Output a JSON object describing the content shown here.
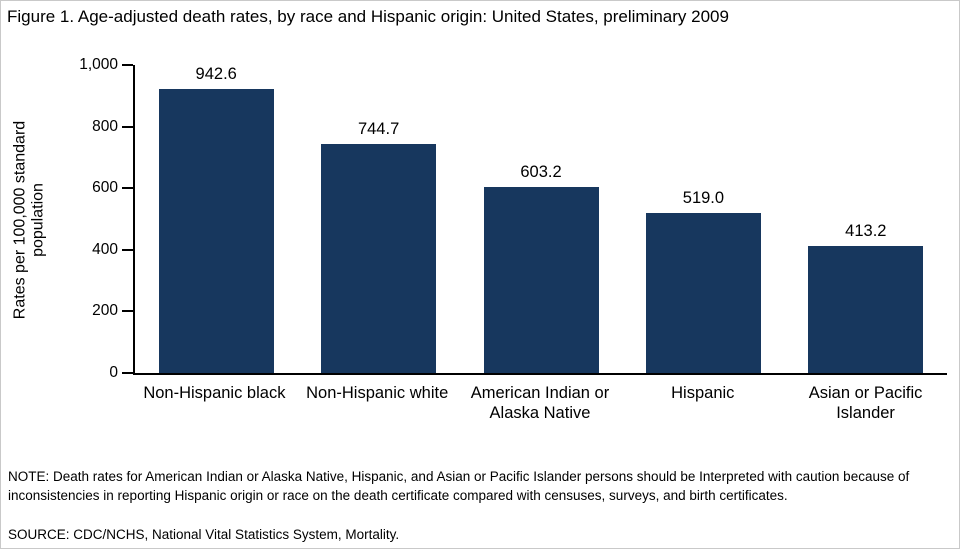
{
  "figure": {
    "title": "Figure 1. Age-adjusted death rates, by race and Hispanic origin: United States, preliminary 2009",
    "note": "NOTE: Death rates for American Indian or Alaska Native, Hispanic, and Asian or Pacific Islander persons should be Interpreted with caution because of inconsistencies in reporting Hispanic origin or race on the death certificate compared with censuses, surveys, and birth certificates.",
    "source": "SOURCE: CDC/NCHS, National Vital Statistics System, Mortality."
  },
  "chart_data": {
    "type": "bar",
    "title": "Figure 1. Age-adjusted death rates, by race and Hispanic origin: United States, preliminary 2009",
    "categories": [
      "Non-Hispanic black",
      "Non-Hispanic white",
      "American Indian or Alaska Native",
      "Hispanic",
      "Asian or Pacific Islander"
    ],
    "values": [
      942.6,
      744.7,
      603.2,
      519.0,
      413.2
    ],
    "value_labels": [
      "942.6",
      "744.7",
      "603.2",
      "519.0",
      "413.2"
    ],
    "xlabel": "",
    "ylabel": "Rates per 100,000 standard population",
    "ylim": [
      0,
      1000
    ],
    "yticks": [
      0,
      200,
      400,
      600,
      800,
      1000
    ],
    "ytick_labels": [
      "0",
      "200",
      "400",
      "600",
      "800",
      "1,000"
    ],
    "bar_color": "#17375E",
    "grid": false,
    "legend": false
  }
}
